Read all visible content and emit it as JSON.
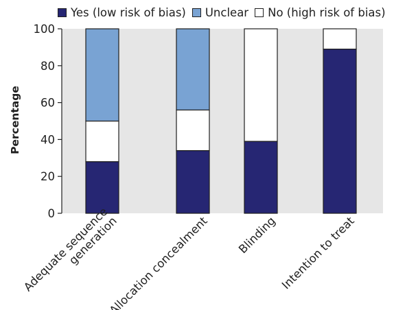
{
  "chart_data": {
    "type": "bar",
    "stacked": true,
    "title": "",
    "xlabel": "",
    "ylabel": "Percentage",
    "ylim": [
      0,
      100
    ],
    "yticks": [
      0,
      20,
      40,
      60,
      80,
      100
    ],
    "grid": false,
    "legend_position": "top",
    "categories": [
      "Adequate sequence generation",
      "Allocation concealment",
      "Blinding",
      "Intention to treat"
    ],
    "category_lines": [
      [
        "Adequate sequence",
        "generation"
      ],
      [
        "Allocation concealment"
      ],
      [
        "Blinding"
      ],
      [
        "Intention to treat"
      ]
    ],
    "series": [
      {
        "name": "Yes (low risk of bias)",
        "color": "#262673",
        "values": [
          28,
          34,
          39,
          89
        ]
      },
      {
        "name": "Unclear",
        "color": "#79a3d3",
        "values": [
          50,
          44,
          0,
          0
        ]
      },
      {
        "name": "No (high risk of bias)",
        "color": "#ffffff",
        "values": [
          22,
          22,
          61,
          11
        ]
      }
    ],
    "stack_order": [
      "Yes (low risk of bias)",
      "No (high risk of bias)",
      "Unclear"
    ],
    "plot_background": "#e6e6e6"
  }
}
